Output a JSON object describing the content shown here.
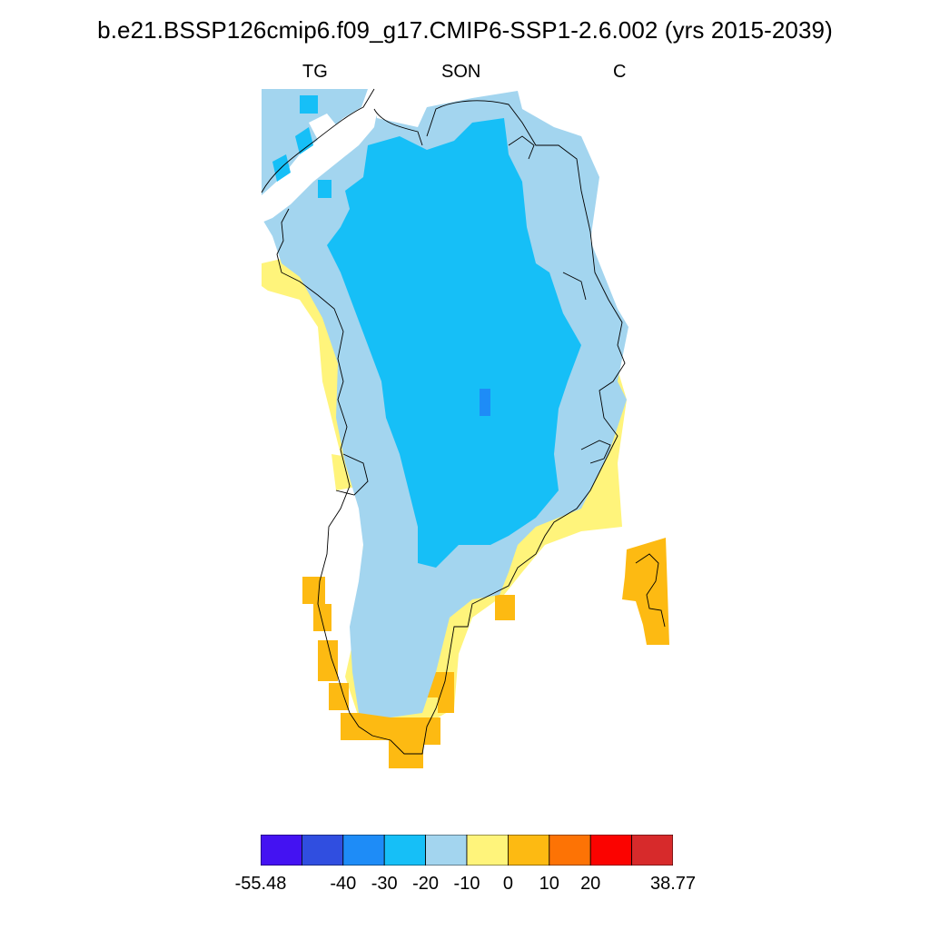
{
  "title": "b.e21.BSSP126cmip6.f09_g17.CMIP6-SSP1-2.6.002 (yrs 2015-2039)",
  "subtitle": {
    "left": "TG",
    "center": "SON",
    "right": "C"
  },
  "colorbar": {
    "colors": [
      "#4412f2",
      "#304ee0",
      "#1e8cf7",
      "#16bff7",
      "#a3d5ef",
      "#fff47b",
      "#fdba12",
      "#fd7305",
      "#fb0300",
      "#d72a2b"
    ],
    "labels": [
      "-55.48",
      "-40",
      "-30",
      "-20",
      "-10",
      "0",
      "10",
      "20",
      "38.77"
    ]
  },
  "map_legend": {
    "lt_-30": "#1e8cf7",
    "-30_-20": "#16bff7",
    "-20_-10": "#a3d5ef",
    "-10_0": "#fff47b",
    "0_10": "#fdba12"
  }
}
